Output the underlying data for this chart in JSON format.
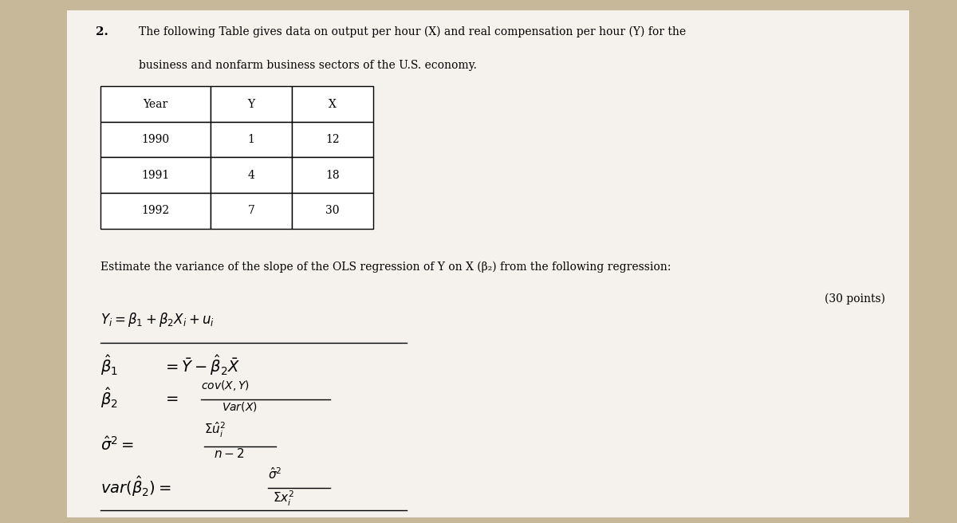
{
  "background_color": "#c8b89a",
  "paper_color": "#f5f2ee",
  "title_number": "2.",
  "title_text_line1": "The following Table gives data on output per hour (X) and real compensation per hour (Y) for the",
  "title_text_line2": "business and nonfarm business sectors of the U.S. economy.",
  "table_headers": [
    "Year",
    "Y",
    "X"
  ],
  "table_rows": [
    [
      "1990",
      "1",
      "12"
    ],
    [
      "1991",
      "4",
      "18"
    ],
    [
      "1992",
      "7",
      "30"
    ]
  ],
  "estimate_text": "Estimate the variance of the slope of the OLS regression of Y on X (β₂) from the following regression:",
  "points_text": "(30 points)"
}
